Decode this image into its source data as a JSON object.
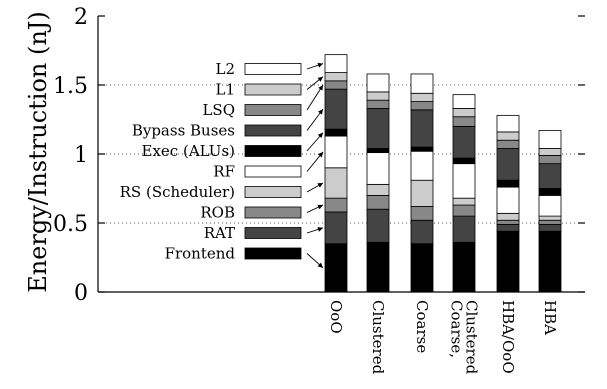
{
  "chart_data": {
    "type": "bar",
    "stacked": true,
    "ylabel": "Energy/Instruction (nJ)",
    "ylim": [
      0,
      2
    ],
    "yticks": [
      0,
      0.5,
      1,
      1.5,
      2
    ],
    "ytick_labels": [
      "0",
      "0.5",
      "1",
      "1.5",
      "2"
    ],
    "grid": "horizontal dotted",
    "legend_position": "left",
    "categories": [
      "OoO",
      "Clustered",
      "Coarse",
      "Coarse, Clustered",
      "HBA/OoO",
      "HBA"
    ],
    "category_labels": [
      [
        "OoO"
      ],
      [
        "Clustered"
      ],
      [
        "Coarse"
      ],
      [
        "Coarse,",
        "Clustered"
      ],
      [
        "HBA/OoO"
      ],
      [
        "HBA"
      ]
    ],
    "series": [
      {
        "name": "Frontend",
        "color": "#000000",
        "values": [
          0.35,
          0.36,
          0.35,
          0.36,
          0.44,
          0.44
        ]
      },
      {
        "name": "RAT",
        "color": "#444444",
        "values": [
          0.23,
          0.24,
          0.17,
          0.19,
          0.05,
          0.05
        ]
      },
      {
        "name": "ROB",
        "color": "#888888",
        "values": [
          0.1,
          0.1,
          0.1,
          0.08,
          0.03,
          0.03
        ]
      },
      {
        "name": "RS (Scheduler)",
        "color": "#cccccc",
        "values": [
          0.22,
          0.08,
          0.19,
          0.05,
          0.05,
          0.03
        ]
      },
      {
        "name": "RF",
        "color": "#ffffff",
        "values": [
          0.23,
          0.23,
          0.21,
          0.25,
          0.19,
          0.15
        ]
      },
      {
        "name": "Exec (ALUs)",
        "color": "#000000",
        "values": [
          0.05,
          0.03,
          0.03,
          0.04,
          0.05,
          0.05
        ]
      },
      {
        "name": "Bypass Buses",
        "color": "#444444",
        "values": [
          0.29,
          0.29,
          0.27,
          0.23,
          0.23,
          0.18
        ]
      },
      {
        "name": "LSQ",
        "color": "#888888",
        "values": [
          0.06,
          0.06,
          0.06,
          0.07,
          0.06,
          0.06
        ]
      },
      {
        "name": "L1",
        "color": "#cccccc",
        "values": [
          0.06,
          0.06,
          0.06,
          0.06,
          0.06,
          0.05
        ]
      },
      {
        "name": "L2",
        "color": "#ffffff",
        "values": [
          0.13,
          0.13,
          0.14,
          0.1,
          0.12,
          0.13
        ]
      }
    ]
  }
}
